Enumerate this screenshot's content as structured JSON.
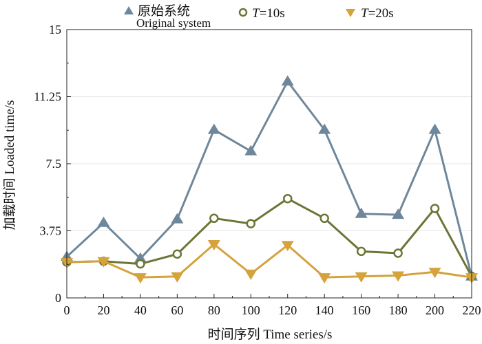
{
  "chart_data": {
    "type": "line",
    "xlabel": "时间序列 Time series/s",
    "ylabel": "加载时间 Loaded time/s",
    "xlim": [
      0,
      220
    ],
    "ylim": [
      0,
      15
    ],
    "x": [
      0,
      20,
      40,
      60,
      80,
      100,
      120,
      140,
      160,
      180,
      200,
      220
    ],
    "x_ticks": [
      "0",
      "20",
      "40",
      "60",
      "80",
      "100",
      "120",
      "140",
      "160",
      "180",
      "200",
      "220"
    ],
    "y_ticks": [
      "0",
      "3.75",
      "7.5",
      "11.25",
      "15"
    ],
    "y_tick_values": [
      0,
      3.75,
      7.5,
      11.25,
      15
    ],
    "grid": "horizontal",
    "legend_position": "top",
    "series": [
      {
        "name": "原始系统",
        "name_sub": "Original system",
        "marker": "triangle-up",
        "color": "#6e879b",
        "values": [
          2.3,
          4.2,
          2.2,
          4.4,
          9.4,
          8.2,
          12.1,
          9.4,
          4.7,
          4.65,
          9.4,
          1.2
        ]
      },
      {
        "name_italic": "T",
        "name": "=10s",
        "marker": "circle",
        "color": "#6b7535",
        "values": [
          2.0,
          2.05,
          1.9,
          2.45,
          4.45,
          4.15,
          5.55,
          4.45,
          2.6,
          2.5,
          5.0,
          1.2
        ]
      },
      {
        "name_italic": "T",
        "name": "=20s",
        "marker": "triangle-down",
        "color": "#d5a23c",
        "values": [
          2.0,
          2.05,
          1.15,
          1.2,
          3.0,
          1.35,
          2.95,
          1.15,
          1.2,
          1.25,
          1.45,
          1.15
        ]
      }
    ]
  }
}
